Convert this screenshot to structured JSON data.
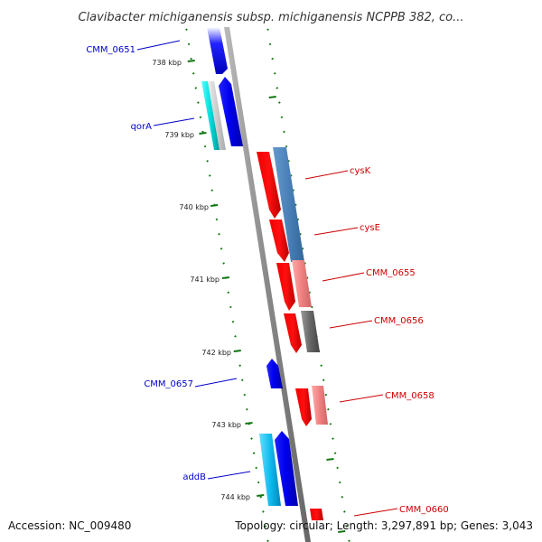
{
  "title": "Clavibacter michiganensis subsp. michiganensis NCPPB 382, co...",
  "footer": {
    "accession": "Accession: NC_009480",
    "topology": "Topology: circular; Length: 3,297,891 bp; Genes: 3,043"
  },
  "colors": {
    "forward_label": "#0000cc",
    "reverse_label": "#cc0000",
    "tick": "#117711",
    "backbone": "#999999"
  },
  "ticks": [
    {
      "label": "738 kbp"
    },
    {
      "label": "739 kbp"
    },
    {
      "label": "740 kbp"
    },
    {
      "label": "741 kbp"
    },
    {
      "label": "742 kbp"
    },
    {
      "label": "743 kbp"
    },
    {
      "label": "744 kbp"
    }
  ],
  "genes": [
    {
      "name": "CMM_0651",
      "strand": "forward",
      "label_color": "#0000cc"
    },
    {
      "name": "qorA",
      "strand": "forward",
      "label_color": "#0000cc"
    },
    {
      "name": "cysK",
      "strand": "reverse",
      "label_color": "#cc0000"
    },
    {
      "name": "cysE",
      "strand": "reverse",
      "label_color": "#cc0000"
    },
    {
      "name": "CMM_0655",
      "strand": "reverse",
      "label_color": "#cc0000"
    },
    {
      "name": "CMM_0656",
      "strand": "reverse",
      "label_color": "#cc0000"
    },
    {
      "name": "CMM_0657",
      "strand": "forward",
      "label_color": "#0000cc"
    },
    {
      "name": "CMM_0658",
      "strand": "reverse",
      "label_color": "#cc0000"
    },
    {
      "name": "addB",
      "strand": "forward",
      "label_color": "#0000cc"
    },
    {
      "name": "CMM_0660",
      "strand": "reverse",
      "label_color": "#cc0000"
    }
  ]
}
